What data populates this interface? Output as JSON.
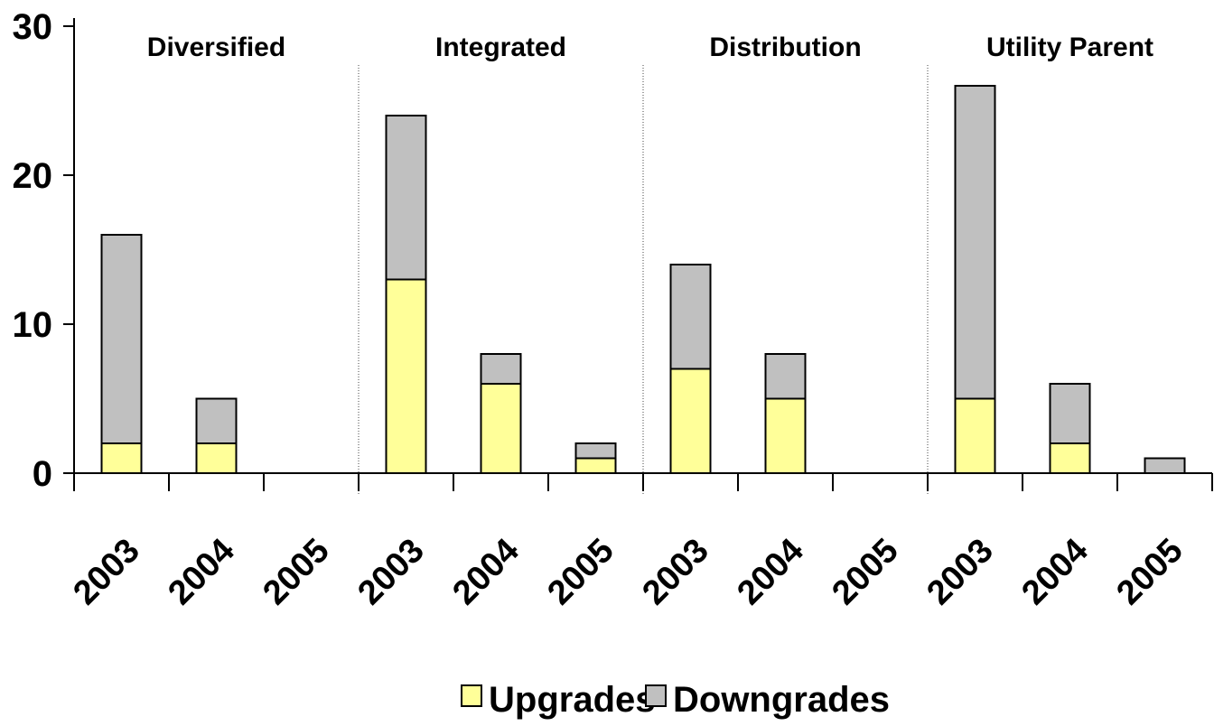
{
  "chart_data": {
    "type": "bar",
    "stacked": true,
    "groups": [
      "Diversified",
      "Integrated",
      "Distribution",
      "Utility Parent"
    ],
    "categories": [
      "2003",
      "2004",
      "2005",
      "2003",
      "2004",
      "2005",
      "2003",
      "2004",
      "2005",
      "2003",
      "2004",
      "2005"
    ],
    "series": [
      {
        "name": "Upgrades",
        "color": "#ffff99",
        "values": [
          2,
          2,
          0,
          13,
          6,
          1,
          7,
          5,
          0,
          5,
          2,
          0
        ]
      },
      {
        "name": "Downgrades",
        "color": "#c0c0c0",
        "values": [
          14,
          3,
          0,
          11,
          2,
          1,
          7,
          3,
          0,
          21,
          4,
          1
        ]
      }
    ],
    "ylim": [
      0,
      30
    ],
    "yticks": [
      "0",
      "10",
      "20",
      "30"
    ],
    "legend_position": "bottom",
    "grid": false
  }
}
